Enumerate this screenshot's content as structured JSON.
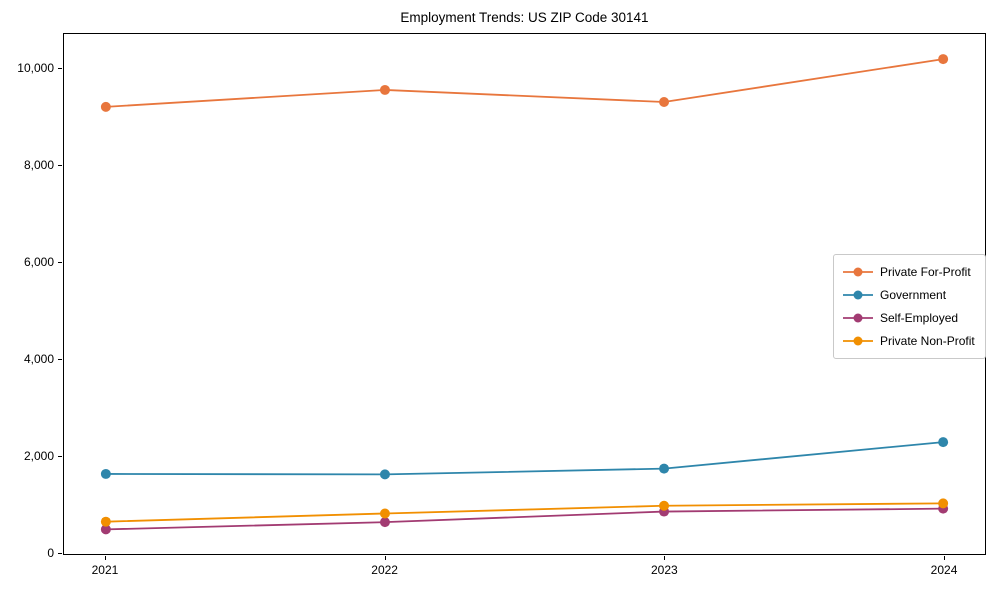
{
  "figure": {
    "background": "#ffffff",
    "axis_color": "#000000",
    "legend_border_color": "#c9c9c9"
  },
  "chart_data": {
    "type": "line",
    "title": "Employment Trends: US ZIP Code 30141",
    "xlabel": "",
    "ylabel": "",
    "x": [
      2021,
      2022,
      2023,
      2024
    ],
    "categories": [
      "2021",
      "2022",
      "2023",
      "2024"
    ],
    "series": [
      {
        "name": "Private For-Profit",
        "color": "#e8763d",
        "values": [
          9220,
          9570,
          9320,
          10210
        ]
      },
      {
        "name": "Government",
        "color": "#2e86ab",
        "values": [
          1610,
          1600,
          1720,
          2270
        ]
      },
      {
        "name": "Self-Employed",
        "color": "#a23b72",
        "values": [
          460,
          610,
          830,
          890
        ]
      },
      {
        "name": "Private Non-Profit",
        "color": "#f18f01",
        "values": [
          620,
          790,
          950,
          1000
        ]
      }
    ],
    "yticks": [
      {
        "value": 0,
        "label": "0"
      },
      {
        "value": 2000,
        "label": "2,000"
      },
      {
        "value": 4000,
        "label": "4,000"
      },
      {
        "value": 6000,
        "label": "6,000"
      },
      {
        "value": 8000,
        "label": "8,000"
      },
      {
        "value": 10000,
        "label": "10,000"
      }
    ],
    "xlim": [
      2020.85,
      2024.15
    ],
    "ylim": [
      -50,
      10730
    ],
    "grid": false,
    "legend_position": "center right",
    "line_width": 1.8,
    "marker": "circle",
    "marker_radius": 5
  }
}
